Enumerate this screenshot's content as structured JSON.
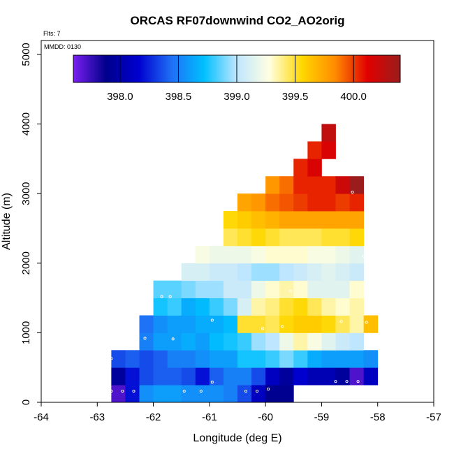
{
  "chart_data": {
    "type": "heatmap",
    "title": "ORCAS RF07downwind CO2_AO2orig",
    "subtitle": "Flts: 7",
    "annotation": "MMDD: 0130",
    "xlabel": "Longitude (deg E)",
    "ylabel": "Altitude (m)",
    "xlim": [
      -64,
      -57
    ],
    "ylim": [
      0,
      5200
    ],
    "x_ticks": [
      -64,
      -63,
      -62,
      -61,
      -60,
      -59,
      -58,
      -57
    ],
    "x_tick_labels": [
      "-64",
      "-63",
      "-62",
      "-61",
      "-60",
      "-59",
      "-58",
      "-57"
    ],
    "y_ticks": [
      0,
      1000,
      2000,
      3000,
      4000,
      5000
    ],
    "y_tick_labels": [
      "0",
      "1000",
      "2000",
      "3000",
      "4000",
      "5000"
    ],
    "colorbar": {
      "range": [
        397.6,
        400.4
      ],
      "ticks": [
        398.0,
        398.5,
        399.0,
        399.5,
        400.0
      ],
      "tick_labels": [
        "398.0",
        "398.5",
        "399.0",
        "399.5",
        "400.0"
      ],
      "stops": [
        "#7a1ff0",
        "#00008b",
        "#0000d0",
        "#1e6ff5",
        "#00c0ff",
        "#bfe6ff",
        "#ffffe0",
        "#ffd700",
        "#ff8c00",
        "#e00000",
        "#9b1c1c"
      ]
    },
    "cell_size": {
      "lon": 0.25,
      "alt": 250
    },
    "rows": [
      {
        "alt": 125,
        "lon_start": -62.75,
        "values": [
          397.7,
          398.2,
          398.55,
          398.6,
          398.6,
          398.55,
          398.55,
          398.55,
          398.5,
          398.35,
          398.1,
          397.9,
          397.9
        ]
      },
      {
        "alt": 375,
        "lon_start": -62.75,
        "values": [
          397.95,
          398.2,
          398.35,
          398.4,
          398.4,
          398.35,
          398.2,
          398.4,
          398.5,
          398.5,
          398.35,
          398.1,
          397.95,
          398.15,
          398.05,
          398.05,
          397.95,
          397.7,
          398.1
        ]
      },
      {
        "alt": 625,
        "lon_start": -62.75,
        "values": [
          398.35,
          398.4,
          398.35,
          398.4,
          398.5,
          398.5,
          398.55,
          398.6,
          398.6,
          398.75,
          398.75,
          398.8,
          398.9,
          398.8,
          398.65,
          398.6,
          398.6,
          398.6,
          398.55
        ]
      },
      {
        "alt": 875,
        "lon_start": -62.25,
        "values": [
          398.5,
          398.6,
          398.6,
          398.65,
          398.6,
          398.7,
          398.75,
          398.8,
          398.95,
          399.0,
          399.2,
          399.35,
          399.25,
          399.15,
          399.05,
          399.0
        ]
      },
      {
        "alt": 1125,
        "lon_start": -62.25,
        "values": [
          398.45,
          398.55,
          398.6,
          398.6,
          398.65,
          398.65,
          398.7,
          399.5,
          399.5,
          399.45,
          399.55,
          399.6,
          399.6,
          399.55,
          399.45,
          399.35,
          399.65
        ]
      },
      {
        "alt": 1375,
        "lon_start": -62.0,
        "values": [
          398.75,
          398.8,
          398.65,
          398.7,
          398.8,
          398.9,
          399.1,
          399.35,
          399.4,
          399.5,
          399.55,
          399.45,
          399.35,
          399.3,
          399.35
        ]
      },
      {
        "alt": 1625,
        "lon_start": -62.0,
        "values": [
          398.85,
          398.85,
          398.9,
          398.95,
          398.95,
          399.05,
          399.05,
          399.2,
          399.3,
          399.35,
          399.3,
          399.15,
          399.15,
          399.15,
          399.3
        ]
      },
      {
        "alt": 1875,
        "lon_start": -61.5,
        "values": [
          399.1,
          399.1,
          399.05,
          399.05,
          399.0,
          398.95,
          398.95,
          399.0,
          399.05,
          399.1,
          399.15,
          399.1,
          399.05
        ]
      },
      {
        "alt": 2125,
        "lon_start": -61.25,
        "values": [
          399.25,
          399.2,
          399.2,
          399.2,
          399.25,
          399.3,
          399.3,
          399.3,
          399.25,
          399.25,
          399.2,
          399.15
        ]
      },
      {
        "alt": 2375,
        "lon_start": -60.75,
        "values": [
          399.45,
          399.5,
          399.55,
          399.5,
          399.45,
          399.45,
          399.45,
          399.5,
          399.5,
          399.55
        ]
      },
      {
        "alt": 2625,
        "lon_start": -60.75,
        "values": [
          399.55,
          399.6,
          399.65,
          399.7,
          399.75,
          399.75,
          399.75,
          399.75,
          399.75,
          399.75
        ]
      },
      {
        "alt": 2875,
        "lon_start": -60.5,
        "values": [
          399.75,
          399.8,
          399.9,
          399.95,
          400.0,
          400.05,
          400.05,
          400.0,
          400.05
        ]
      },
      {
        "alt": 3125,
        "lon_start": -60.0,
        "values": [
          399.8,
          399.9,
          400.05,
          400.05,
          400.05,
          400.2,
          400.4
        ]
      },
      {
        "alt": 3375,
        "lon_start": -59.5,
        "values": [
          400.05,
          400.15
        ]
      },
      {
        "alt": 3625,
        "lon_start": -59.25,
        "values": [
          400.05,
          400.15
        ]
      },
      {
        "alt": 3875,
        "lon_start": -59.0,
        "values": [
          400.25
        ]
      }
    ],
    "obs_points": [
      {
        "lon": -62.75,
        "alt": 160
      },
      {
        "lon": -62.55,
        "alt": 160
      },
      {
        "lon": -62.35,
        "alt": 160
      },
      {
        "lon": -61.45,
        "alt": 160
      },
      {
        "lon": -61.15,
        "alt": 160
      },
      {
        "lon": -60.95,
        "alt": 290
      },
      {
        "lon": -60.35,
        "alt": 160
      },
      {
        "lon": -60.15,
        "alt": 160
      },
      {
        "lon": -59.95,
        "alt": 190
      },
      {
        "lon": -59.45,
        "alt": 210
      },
      {
        "lon": -59.25,
        "alt": 190
      },
      {
        "lon": -58.75,
        "alt": 300
      },
      {
        "lon": -58.55,
        "alt": 300
      },
      {
        "lon": -58.35,
        "alt": 300
      },
      {
        "lon": -62.75,
        "alt": 630
      },
      {
        "lon": -62.15,
        "alt": 920
      },
      {
        "lon": -61.65,
        "alt": 910
      },
      {
        "lon": -61.85,
        "alt": 1520
      },
      {
        "lon": -61.7,
        "alt": 1520
      },
      {
        "lon": -60.95,
        "alt": 1180
      },
      {
        "lon": -60.05,
        "alt": 1060
      },
      {
        "lon": -59.7,
        "alt": 1090
      },
      {
        "lon": -59.55,
        "alt": 1600
      },
      {
        "lon": -58.65,
        "alt": 1160
      },
      {
        "lon": -58.2,
        "alt": 1150
      },
      {
        "lon": -58.25,
        "alt": 2100
      },
      {
        "lon": -58.45,
        "alt": 3020
      },
      {
        "lon": -58.65,
        "alt": 3970
      }
    ]
  }
}
